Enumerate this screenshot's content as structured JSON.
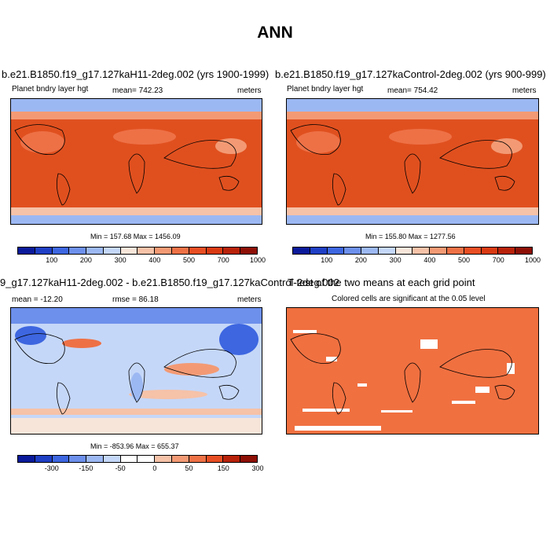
{
  "main_title": "ANN",
  "panels": [
    {
      "title": "b.e21.B1850.f19_g17.127kaH11-2deg.002 (yrs 1900-1999)",
      "variable": "Planet bndry layer hgt",
      "mean": "mean= 742.23",
      "units": "meters",
      "minmax": "Min = 157.68 Max = 1456.09"
    },
    {
      "title": "b.e21.B1850.f19_g17.127kaControl-2deg.002 (yrs 900-999)",
      "variable": "Planet bndry layer hgt",
      "mean": "mean= 754.42",
      "units": "meters",
      "minmax": "Min = 155.80 Max = 1277.56"
    },
    {
      "title": "9_g17.127kaH11-2deg.002 - b.e21.B1850.f19_g17.127kaControl-2deg.002",
      "mean": "mean = -12.20",
      "rmse": "rmse =  86.18",
      "units": "meters",
      "minmax": "Min = -853.96 Max = 655.37"
    },
    {
      "title": "T-test of the two means at each grid point",
      "subtitle": "Colored cells are significant at the 0.05 level"
    }
  ],
  "colorbar_abs": {
    "ticks": [
      "100",
      "200",
      "300",
      "400",
      "500",
      "700",
      "1000"
    ],
    "colors": [
      "#0a1a9a",
      "#1f3fc4",
      "#3d66e0",
      "#6d90ec",
      "#9cb8f3",
      "#c5d7f8",
      "#f7e5da",
      "#f6c2a8",
      "#f39a74",
      "#ee7146",
      "#e84e23",
      "#d93a12",
      "#b8220a",
      "#8d0f05"
    ]
  },
  "colorbar_diff": {
    "ticks": [
      "-300",
      "-150",
      "-50",
      "0",
      "50",
      "150",
      "300"
    ],
    "colors": [
      "#0a1a9a",
      "#1f3fc4",
      "#3d66e0",
      "#6d90ec",
      "#9cb8f3",
      "#c5d7f8",
      "#ffffff",
      "#ffffff",
      "#f6c2a8",
      "#f39a74",
      "#ee7146",
      "#e84e23",
      "#b8220a",
      "#8d0f05"
    ]
  }
}
